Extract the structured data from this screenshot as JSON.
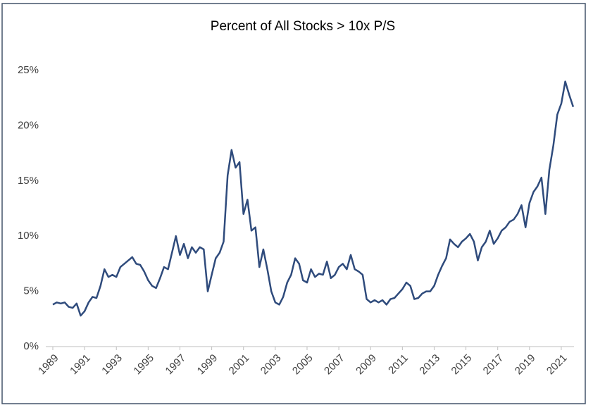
{
  "chart_data": {
    "type": "line",
    "title": "Percent of All Stocks > 10x P/S",
    "x": [
      1989,
      1989.25,
      1989.5,
      1989.75,
      1990,
      1990.25,
      1990.5,
      1990.75,
      1991,
      1991.25,
      1991.5,
      1991.75,
      1992,
      1992.25,
      1992.5,
      1992.75,
      1993,
      1993.25,
      1993.5,
      1993.75,
      1994,
      1994.25,
      1994.5,
      1994.75,
      1995,
      1995.25,
      1995.5,
      1995.75,
      1996,
      1996.25,
      1996.5,
      1996.75,
      1997,
      1997.25,
      1997.5,
      1997.75,
      1998,
      1998.25,
      1998.5,
      1998.75,
      1999,
      1999.25,
      1999.5,
      1999.75,
      2000,
      2000.25,
      2000.5,
      2000.75,
      2001,
      2001.25,
      2001.5,
      2001.75,
      2002,
      2002.25,
      2002.5,
      2002.75,
      2003,
      2003.25,
      2003.5,
      2003.75,
      2004,
      2004.25,
      2004.5,
      2004.75,
      2005,
      2005.25,
      2005.5,
      2005.75,
      2006,
      2006.25,
      2006.5,
      2006.75,
      2007,
      2007.25,
      2007.5,
      2007.75,
      2008,
      2008.25,
      2008.5,
      2008.75,
      2009,
      2009.25,
      2009.5,
      2009.75,
      2010,
      2010.25,
      2010.5,
      2010.75,
      2011,
      2011.25,
      2011.5,
      2011.75,
      2012,
      2012.25,
      2012.5,
      2012.75,
      2013,
      2013.25,
      2013.5,
      2013.75,
      2014,
      2014.25,
      2014.5,
      2014.75,
      2015,
      2015.25,
      2015.5,
      2015.75,
      2016,
      2016.25,
      2016.5,
      2016.75,
      2017,
      2017.25,
      2017.5,
      2017.75,
      2018,
      2018.25,
      2018.5,
      2018.75,
      2019,
      2019.25,
      2019.5,
      2019.75,
      2020,
      2020.25,
      2020.5,
      2020.75,
      2021,
      2021.25,
      2021.5,
      2021.75
    ],
    "values": [
      3.8,
      4.0,
      3.9,
      4.0,
      3.6,
      3.5,
      3.9,
      2.8,
      3.2,
      4.0,
      4.5,
      4.4,
      5.5,
      7.0,
      6.3,
      6.5,
      6.3,
      7.2,
      7.5,
      7.8,
      8.1,
      7.5,
      7.4,
      6.8,
      6.0,
      5.5,
      5.3,
      6.2,
      7.2,
      7.0,
      8.5,
      10.0,
      8.3,
      9.3,
      8.0,
      9.0,
      8.5,
      9.0,
      8.8,
      5.0,
      6.5,
      8.0,
      8.5,
      9.5,
      15.5,
      17.8,
      16.2,
      16.7,
      12.0,
      13.3,
      10.5,
      10.8,
      7.2,
      8.8,
      7.0,
      5.0,
      4.0,
      3.8,
      4.5,
      5.8,
      6.5,
      8.0,
      7.5,
      6.0,
      5.8,
      7.0,
      6.3,
      6.6,
      6.5,
      7.7,
      6.2,
      6.5,
      7.2,
      7.5,
      7.0,
      8.3,
      7.0,
      6.8,
      6.5,
      4.3,
      4.0,
      4.2,
      4.0,
      4.2,
      3.8,
      4.3,
      4.4,
      4.8,
      5.2,
      5.8,
      5.5,
      4.3,
      4.4,
      4.8,
      5.0,
      5.0,
      5.5,
      6.5,
      7.3,
      8.0,
      9.7,
      9.3,
      9.0,
      9.5,
      9.8,
      10.2,
      9.5,
      7.8,
      9.0,
      9.5,
      10.5,
      9.3,
      9.8,
      10.5,
      10.8,
      11.3,
      11.5,
      12.0,
      12.8,
      10.8,
      13.0,
      14.0,
      14.5,
      15.3,
      12.0,
      16.0,
      18.2,
      21.0,
      22.0,
      24.0,
      22.8,
      21.7
    ],
    "color": "#2f4b7c",
    "xlim": [
      1989,
      2021.8
    ],
    "xticks": [
      1989,
      1991,
      1993,
      1995,
      1997,
      1999,
      2001,
      2003,
      2005,
      2007,
      2009,
      2011,
      2013,
      2015,
      2017,
      2019,
      2021
    ],
    "ylim": [
      0,
      25
    ],
    "yticks": [
      {
        "value": 0,
        "label": "0%"
      },
      {
        "value": 5,
        "label": "5%"
      },
      {
        "value": 10,
        "label": "10%"
      },
      {
        "value": 15,
        "label": "15%"
      },
      {
        "value": 20,
        "label": "20%"
      },
      {
        "value": 25,
        "label": "25%"
      }
    ]
  }
}
